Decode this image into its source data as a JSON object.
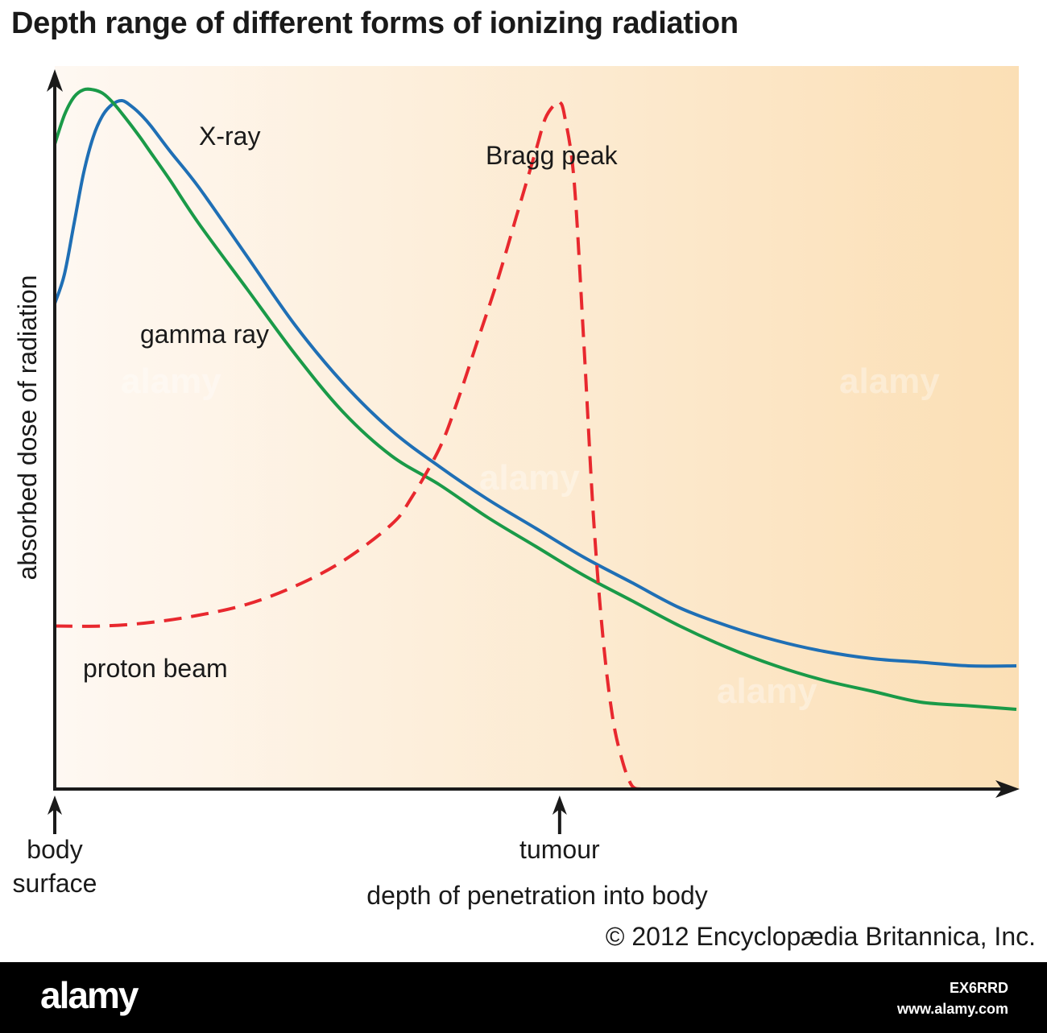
{
  "title": "Depth range of different forms of ionizing radiation",
  "copyright": "© 2012 Encyclopædia Britannica, Inc.",
  "footer": {
    "logo": "alamy",
    "image_id": "EX6RRD",
    "url": "www.alamy.com"
  },
  "watermark": "alamy",
  "colors": {
    "x_ray": "#1f6fb5",
    "gamma_ray": "#1a9a48",
    "proton_beam": "#e8282e",
    "background_start": "#fef8f2",
    "background_end": "#fbdfb5",
    "axis": "#1a1a1a"
  },
  "chart_data": {
    "type": "line",
    "title": "Depth range of different forms of ionizing radiation",
    "xlabel": "depth of penetration into body",
    "ylabel": "absorbed dose of radiation",
    "xlim": [
      0,
      100
    ],
    "ylim": [
      0,
      100
    ],
    "ticks": false,
    "grid": false,
    "axis_markers": [
      {
        "x": 0,
        "label": "body surface",
        "lines": [
          "body",
          "surface"
        ]
      },
      {
        "x": 52.5,
        "label": "tumour",
        "lines": [
          "tumour"
        ]
      }
    ],
    "series": [
      {
        "name": "X-ray",
        "color": "#1f6fb5",
        "style": "solid",
        "x": [
          0,
          1,
          2,
          3,
          4,
          5,
          6,
          7,
          8,
          9,
          10,
          12,
          15,
          20,
          25,
          30,
          35,
          40,
          45,
          50,
          55,
          60,
          65,
          70,
          75,
          80,
          85,
          90,
          95,
          100
        ],
        "y": [
          67,
          71,
          78,
          85,
          90,
          93,
          94.5,
          95,
          94.2,
          93,
          91.5,
          88,
          83,
          73.5,
          64,
          56,
          49.5,
          44.5,
          40,
          36,
          32,
          28.5,
          25,
          22.5,
          20.5,
          19,
          18,
          17.5,
          17,
          17
        ]
      },
      {
        "name": "gamma ray",
        "color": "#1a9a48",
        "style": "solid",
        "x": [
          0,
          1,
          2,
          3,
          4,
          5,
          6,
          7,
          8,
          9,
          10,
          12,
          15,
          20,
          25,
          30,
          35,
          40,
          45,
          50,
          55,
          60,
          65,
          70,
          75,
          80,
          85,
          90,
          95,
          100
        ],
        "y": [
          89,
          93,
          95.5,
          96.5,
          96.5,
          96,
          94.8,
          93.2,
          91.5,
          89.7,
          87.8,
          84,
          78,
          69,
          60,
          52,
          46,
          42,
          37.5,
          33.5,
          29.5,
          26,
          22.5,
          19.5,
          17,
          15,
          13.5,
          12,
          11.5,
          11
        ]
      },
      {
        "name": "proton beam",
        "color": "#e8282e",
        "style": "dashed",
        "x": [
          0,
          5,
          10,
          15,
          20,
          25,
          30,
          35,
          37,
          40,
          42,
          44,
          46,
          48,
          50,
          51,
          52,
          52.5,
          53,
          54,
          55,
          56,
          57,
          58,
          59,
          60,
          61
        ],
        "y": [
          22.5,
          22.5,
          23,
          24,
          25.5,
          28,
          31.5,
          36.5,
          40,
          47,
          54,
          62,
          70,
          79,
          88,
          92.5,
          94.5,
          94.8,
          93,
          84,
          62,
          38,
          21,
          10,
          4,
          0.5,
          0
        ]
      }
    ],
    "annotations": [
      {
        "text": "X-ray",
        "series": "X-ray"
      },
      {
        "text": "gamma ray",
        "series": "gamma ray"
      },
      {
        "text": "proton beam",
        "series": "proton beam"
      },
      {
        "text": "Bragg peak",
        "series": "proton beam"
      }
    ]
  }
}
